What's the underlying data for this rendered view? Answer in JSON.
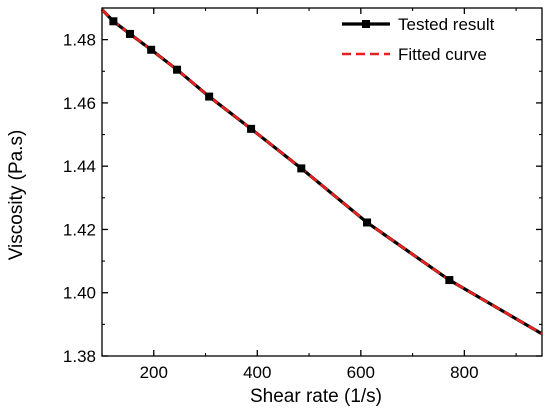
{
  "chart_data": {
    "type": "line",
    "xlabel": "Shear rate (1/s)",
    "ylabel": "Viscosity (Pa.s)",
    "xlim": [
      100,
      950
    ],
    "ylim": [
      1.38,
      1.49
    ],
    "x_ticks": [
      200,
      400,
      600,
      800
    ],
    "x_tick_labels": [
      "200",
      "400",
      "600",
      "800"
    ],
    "y_ticks": [
      1.38,
      1.4,
      1.42,
      1.44,
      1.46,
      1.48
    ],
    "y_tick_labels": [
      "1.38",
      "1.40",
      "1.42",
      "1.44",
      "1.46",
      "1.48"
    ],
    "grid": false,
    "legend_position": "top-right",
    "series": [
      {
        "name": "Tested result",
        "color": "#000000",
        "style": "solid",
        "marker": "square",
        "x": [
          100,
          122,
          154,
          195,
          245,
          307,
          388,
          485,
          612,
          771,
          950
        ],
        "y": [
          1.4895,
          1.4858,
          1.4818,
          1.4768,
          1.4705,
          1.462,
          1.4518,
          1.4393,
          1.4222,
          1.404,
          1.387
        ],
        "marker_indices": [
          1,
          2,
          3,
          4,
          5,
          6,
          7,
          8,
          9
        ]
      },
      {
        "name": "Fitted curve",
        "color": "#e8211f",
        "style": "dashed",
        "x": [
          100,
          122,
          154,
          195,
          245,
          307,
          388,
          485,
          612,
          771,
          950
        ],
        "y": [
          1.4895,
          1.4858,
          1.4818,
          1.4768,
          1.4705,
          1.462,
          1.4518,
          1.4393,
          1.4222,
          1.404,
          1.387
        ]
      }
    ]
  }
}
